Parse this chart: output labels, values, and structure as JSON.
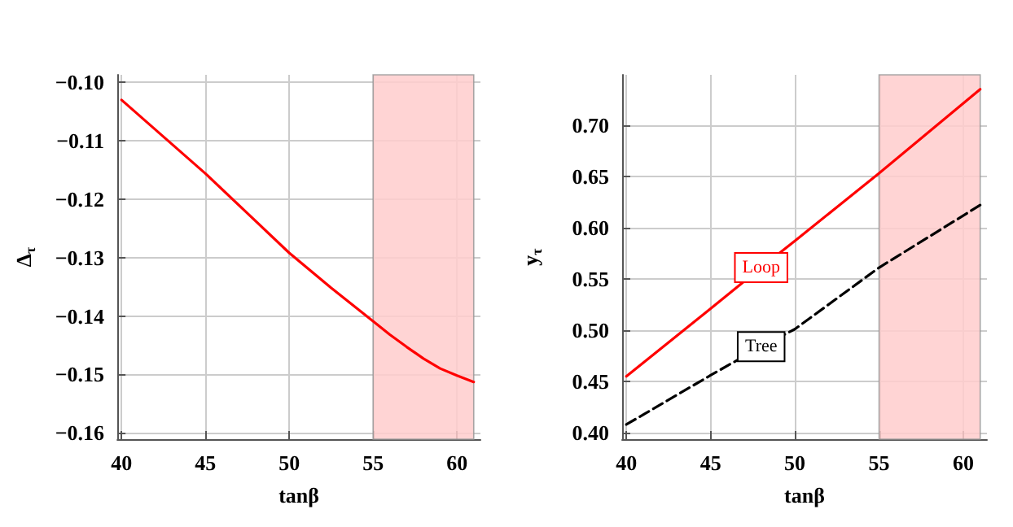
{
  "chart_data": [
    {
      "type": "line",
      "xlabel": "tanβ",
      "ylabel": "Δ$_{τ}$",
      "x": [
        40,
        42.5,
        45,
        47.5,
        50,
        52.5,
        55,
        56,
        57,
        58,
        59,
        60,
        61
      ],
      "series": [
        {
          "color": "#ff0000",
          "line_style": "solid",
          "values": [
            -0.103,
            -0.1093,
            -0.1156,
            -0.1224,
            -0.1292,
            -0.1352,
            -0.1409,
            -0.1432,
            -0.1453,
            -0.1473,
            -0.149,
            -0.1502,
            -0.1513
          ]
        }
      ],
      "xlim": [
        39.75,
        61.4
      ],
      "xticks": [
        40,
        45,
        50,
        55,
        60
      ],
      "ylim": [
        -0.1611,
        -0.0987
      ],
      "yticks": [
        {
          "value": -0.16,
          "label": "−0.16"
        },
        {
          "value": -0.15,
          "label": "−0.15"
        },
        {
          "value": -0.14,
          "label": "−0.14"
        },
        {
          "value": -0.13,
          "label": "−0.13"
        },
        {
          "value": -0.12,
          "label": "−0.12"
        },
        {
          "value": -0.11,
          "label": "−0.11"
        },
        {
          "value": -0.1,
          "label": "−0.10"
        }
      ],
      "bands": [
        {
          "axis": "x",
          "from": 55,
          "to": 61,
          "color": "#ffcccc"
        }
      ],
      "grid": true,
      "marker": "none",
      "legend": false
    },
    {
      "type": "line",
      "xlabel": "tanβ",
      "ylabel": "y$_{τ}$",
      "x": [
        40,
        45,
        48,
        50,
        55,
        61
      ],
      "series": [
        {
          "name": "Loop",
          "color": "#ff0000",
          "line_style": "solid",
          "values": [
            0.455,
            0.521,
            0.561,
            0.587,
            0.653,
            0.735
          ]
        },
        {
          "name": "Tree",
          "color": "#000000",
          "line_style": "dashed",
          "values": [
            0.408,
            0.456,
            0.484,
            0.501,
            0.561,
            0.622
          ]
        }
      ],
      "xlim": [
        39.75,
        61.4
      ],
      "xticks": [
        40,
        45,
        50,
        55,
        60
      ],
      "ylim": [
        0.3937,
        0.749
      ],
      "yticks": [
        {
          "value": 0.4,
          "label": "0.40"
        },
        {
          "value": 0.45,
          "label": "0.45"
        },
        {
          "value": 0.5,
          "label": "0.50"
        },
        {
          "value": 0.55,
          "label": "0.55"
        },
        {
          "value": 0.6,
          "label": "0.60"
        },
        {
          "value": 0.65,
          "label": "0.65"
        },
        {
          "value": 0.7,
          "label": "0.70"
        }
      ],
      "bands": [
        {
          "axis": "x",
          "from": 55,
          "to": 61,
          "color": "#ffcccc"
        }
      ],
      "grid": true,
      "marker": "none",
      "legend": false
    }
  ]
}
